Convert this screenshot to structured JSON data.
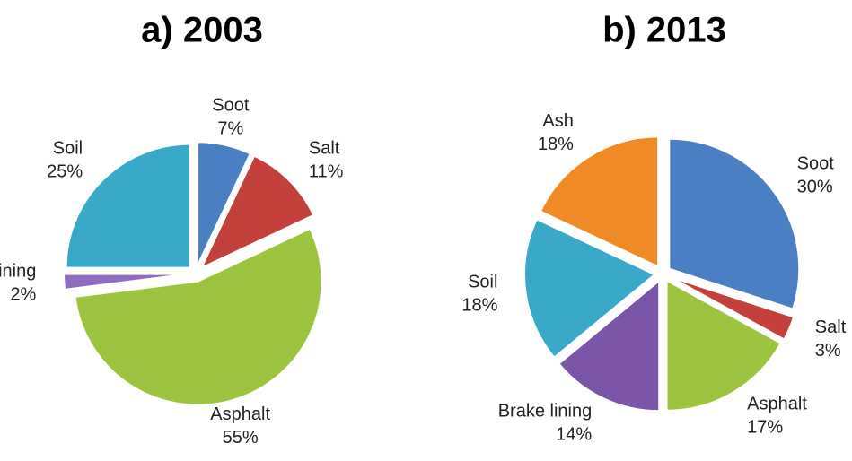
{
  "chart_data": [
    {
      "type": "pie",
      "title": "a) 2003",
      "categories": [
        "Soot",
        "Salt",
        "Asphalt",
        "Brake lining",
        "Soil"
      ],
      "values": [
        7,
        11,
        55,
        2,
        25
      ],
      "value_labels": [
        "7%",
        "11%",
        "55%",
        "2%",
        "25%"
      ],
      "colors": [
        "#4a7fc4",
        "#c4403a",
        "#9cc43e",
        "#8f6cc0",
        "#38a9c8"
      ]
    },
    {
      "type": "pie",
      "title": "b) 2013",
      "categories": [
        "Soot",
        "Salt",
        "Asphalt",
        "Brake lining",
        "Soil",
        "Ash"
      ],
      "values": [
        30,
        3,
        17,
        14,
        18,
        18
      ],
      "value_labels": [
        "30%",
        "3%",
        "17%",
        "14%",
        "18%",
        "18%"
      ],
      "colors": [
        "#4a7fc4",
        "#c4403a",
        "#9cc43e",
        "#7a55a8",
        "#38a9c8",
        "#f08a24"
      ]
    }
  ]
}
